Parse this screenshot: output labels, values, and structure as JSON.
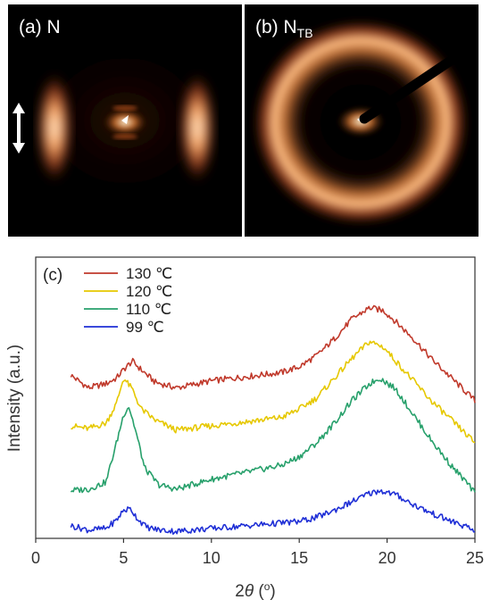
{
  "panels": [
    {
      "label": "(a) N",
      "pattern": "nematic",
      "arrow": true
    },
    {
      "label_main": "(b) N",
      "label_sub": "TB",
      "pattern": "twist-bend-ring",
      "beamstop": true
    }
  ],
  "colors": {
    "glow": "#ffb070",
    "glow_core": "#fff3d8",
    "background": "#000000"
  },
  "chart_data": {
    "type": "line",
    "panel_label": "(c)",
    "xlabel": "2θ (°)",
    "ylabel": "Intensity (a.u.)",
    "xlim": [
      0,
      25
    ],
    "xticks": [
      0,
      5,
      10,
      15,
      20,
      25
    ],
    "grid": false,
    "legend_position": "top-left",
    "series": [
      {
        "name": "130 ℃",
        "color": "#c0392b",
        "x": [
          2,
          3,
          4,
          4.6,
          5.0,
          5.5,
          6.0,
          6.8,
          8.0,
          10,
          12,
          14,
          15,
          16,
          17,
          18,
          19,
          19.8,
          20.5,
          21.5,
          22.5,
          23.5,
          24.5,
          25
        ],
        "y": [
          0.58,
          0.535,
          0.55,
          0.57,
          0.6,
          0.63,
          0.6,
          0.555,
          0.535,
          0.56,
          0.575,
          0.59,
          0.61,
          0.65,
          0.71,
          0.78,
          0.82,
          0.81,
          0.77,
          0.71,
          0.64,
          0.58,
          0.52,
          0.49
        ]
      },
      {
        "name": "120 ℃",
        "color": "#e6c800",
        "x": [
          2,
          3,
          4,
          4.6,
          5.0,
          5.5,
          6.0,
          6.8,
          8.0,
          10,
          12,
          14,
          15,
          16,
          17,
          18,
          19,
          19.8,
          20.5,
          21.5,
          22.5,
          23.5,
          24.5,
          25
        ],
        "y": [
          0.4,
          0.39,
          0.41,
          0.48,
          0.57,
          0.53,
          0.46,
          0.42,
          0.385,
          0.4,
          0.415,
          0.43,
          0.46,
          0.5,
          0.57,
          0.64,
          0.7,
          0.68,
          0.63,
          0.56,
          0.49,
          0.43,
          0.37,
          0.34
        ]
      },
      {
        "name": "110 ℃",
        "color": "#27a06b",
        "x": [
          2,
          3,
          4,
          4.6,
          5.0,
          5.3,
          5.7,
          6.2,
          7.0,
          8.0,
          10,
          12,
          14,
          15,
          16,
          17,
          18,
          19,
          19.6,
          20.5,
          21.5,
          22.5,
          23.5,
          24.5,
          25
        ],
        "y": [
          0.17,
          0.175,
          0.2,
          0.34,
          0.44,
          0.47,
          0.38,
          0.25,
          0.19,
          0.175,
          0.21,
          0.235,
          0.26,
          0.29,
          0.34,
          0.41,
          0.49,
          0.55,
          0.57,
          0.53,
          0.44,
          0.35,
          0.27,
          0.2,
          0.16
        ]
      },
      {
        "name": "99 ℃",
        "color": "#1f2fd6",
        "x": [
          2,
          3,
          4,
          4.6,
          5.0,
          5.4,
          5.8,
          6.3,
          7.0,
          8.0,
          10,
          12,
          14,
          15,
          16,
          17,
          18,
          19,
          19.6,
          20.5,
          21.5,
          22.5,
          23.5,
          24.5,
          25
        ],
        "y": [
          0.045,
          0.03,
          0.035,
          0.065,
          0.1,
          0.105,
          0.07,
          0.04,
          0.03,
          0.025,
          0.035,
          0.045,
          0.055,
          0.06,
          0.075,
          0.1,
          0.13,
          0.16,
          0.17,
          0.155,
          0.12,
          0.09,
          0.065,
          0.04,
          0.025
        ]
      }
    ]
  }
}
